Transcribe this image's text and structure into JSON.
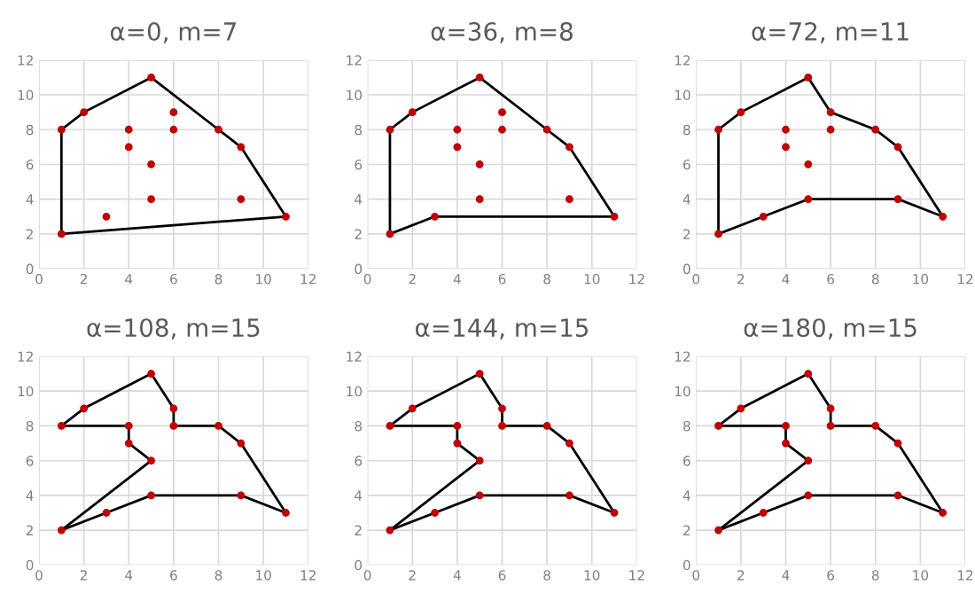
{
  "chart_data": [
    {
      "type": "scatter",
      "title": "α=0, m=7",
      "xlim": [
        0,
        12
      ],
      "xticks": [
        0,
        2,
        4,
        6,
        8,
        10,
        12
      ],
      "ylim": [
        0,
        12
      ],
      "yticks": [
        0,
        2,
        4,
        6,
        8,
        10,
        12
      ],
      "grid": true,
      "series": [
        {
          "type": "line",
          "color": "#000000",
          "marker": "none",
          "x": [
            1,
            1,
            2,
            5,
            8,
            9,
            11
          ],
          "values": [
            2,
            8,
            9,
            11,
            8,
            7,
            3
          ]
        },
        {
          "type": "line",
          "color": "#000000",
          "marker": "none",
          "x": [
            11,
            1
          ],
          "values": [
            3,
            2
          ]
        },
        {
          "color": "#c00000",
          "marker": "circle",
          "x": [
            1,
            2,
            5,
            6,
            6,
            8,
            9,
            11,
            9,
            5,
            3,
            1,
            4,
            4,
            5
          ],
          "values": [
            8,
            9,
            11,
            9,
            8,
            8,
            7,
            3,
            4,
            4,
            3,
            2,
            8,
            7,
            6
          ]
        }
      ]
    },
    {
      "type": "scatter",
      "title": "α=36, m=8",
      "xlim": [
        0,
        12
      ],
      "xticks": [
        0,
        2,
        4,
        6,
        8,
        10,
        12
      ],
      "ylim": [
        0,
        12
      ],
      "yticks": [
        0,
        2,
        4,
        6,
        8,
        10,
        12
      ],
      "grid": true,
      "series": [
        {
          "type": "line",
          "color": "#000000",
          "marker": "none",
          "x": [
            1,
            1,
            2,
            5,
            8,
            9,
            11
          ],
          "values": [
            2,
            8,
            9,
            11,
            8,
            7,
            3
          ]
        },
        {
          "type": "line",
          "color": "#000000",
          "marker": "none",
          "x": [
            11,
            3,
            1
          ],
          "values": [
            3,
            3,
            2
          ]
        },
        {
          "color": "#c00000",
          "marker": "circle",
          "x": [
            1,
            2,
            5,
            6,
            6,
            8,
            9,
            11,
            9,
            5,
            3,
            1,
            4,
            4,
            5
          ],
          "values": [
            8,
            9,
            11,
            9,
            8,
            8,
            7,
            3,
            4,
            4,
            3,
            2,
            8,
            7,
            6
          ]
        }
      ]
    },
    {
      "type": "scatter",
      "title": "α=72, m=11",
      "xlim": [
        0,
        12
      ],
      "xticks": [
        0,
        2,
        4,
        6,
        8,
        10,
        12
      ],
      "ylim": [
        0,
        12
      ],
      "yticks": [
        0,
        2,
        4,
        6,
        8,
        10,
        12
      ],
      "grid": true,
      "series": [
        {
          "type": "line",
          "color": "#000000",
          "marker": "none",
          "x": [
            1,
            1,
            2,
            5,
            6,
            8,
            9,
            11
          ],
          "values": [
            2,
            8,
            9,
            11,
            9,
            8,
            7,
            3
          ]
        },
        {
          "type": "line",
          "color": "#000000",
          "marker": "none",
          "x": [
            11,
            9,
            5,
            3,
            1
          ],
          "values": [
            3,
            4,
            4,
            3,
            2
          ]
        },
        {
          "color": "#c00000",
          "marker": "circle",
          "x": [
            1,
            2,
            5,
            6,
            6,
            8,
            9,
            11,
            9,
            5,
            3,
            1,
            4,
            4,
            5
          ],
          "values": [
            8,
            9,
            11,
            9,
            8,
            8,
            7,
            3,
            4,
            4,
            3,
            2,
            8,
            7,
            6
          ]
        }
      ]
    },
    {
      "type": "scatter",
      "title": "α=108, m=15",
      "xlim": [
        0,
        12
      ],
      "xticks": [
        0,
        2,
        4,
        6,
        8,
        10,
        12
      ],
      "ylim": [
        0,
        12
      ],
      "yticks": [
        0,
        2,
        4,
        6,
        8,
        10,
        12
      ],
      "grid": true,
      "series": [
        {
          "type": "line",
          "color": "#000000",
          "marker": "none",
          "x": [
            1,
            5,
            4,
            4,
            1,
            2,
            5,
            6,
            6,
            8,
            9,
            11
          ],
          "values": [
            2,
            6,
            7,
            8,
            8,
            9,
            11,
            9,
            8,
            8,
            7,
            3
          ]
        },
        {
          "type": "line",
          "color": "#000000",
          "marker": "none",
          "x": [
            11,
            9,
            5,
            3,
            1
          ],
          "values": [
            3,
            4,
            4,
            3,
            2
          ]
        },
        {
          "color": "#c00000",
          "marker": "circle",
          "x": [
            1,
            2,
            5,
            6,
            6,
            8,
            9,
            11,
            9,
            5,
            3,
            1,
            4,
            4,
            5
          ],
          "values": [
            8,
            9,
            11,
            9,
            8,
            8,
            7,
            3,
            4,
            4,
            3,
            2,
            8,
            7,
            6
          ]
        }
      ]
    },
    {
      "type": "scatter",
      "title": "α=144, m=15",
      "xlim": [
        0,
        12
      ],
      "xticks": [
        0,
        2,
        4,
        6,
        8,
        10,
        12
      ],
      "ylim": [
        0,
        12
      ],
      "yticks": [
        0,
        2,
        4,
        6,
        8,
        10,
        12
      ],
      "grid": true,
      "series": [
        {
          "type": "line",
          "color": "#000000",
          "marker": "none",
          "x": [
            1,
            5,
            4,
            4,
            1,
            2,
            5,
            6,
            6,
            8,
            9,
            11
          ],
          "values": [
            2,
            6,
            7,
            8,
            8,
            9,
            11,
            9,
            8,
            8,
            7,
            3
          ]
        },
        {
          "type": "line",
          "color": "#000000",
          "marker": "none",
          "x": [
            11,
            9,
            5,
            3,
            1
          ],
          "values": [
            3,
            4,
            4,
            3,
            2
          ]
        },
        {
          "color": "#c00000",
          "marker": "circle",
          "x": [
            1,
            2,
            5,
            6,
            6,
            8,
            9,
            11,
            9,
            5,
            3,
            1,
            4,
            4,
            5
          ],
          "values": [
            8,
            9,
            11,
            9,
            8,
            8,
            7,
            3,
            4,
            4,
            3,
            2,
            8,
            7,
            6
          ]
        }
      ]
    },
    {
      "type": "scatter",
      "title": "α=180, m=15",
      "xlim": [
        0,
        12
      ],
      "xticks": [
        0,
        2,
        4,
        6,
        8,
        10,
        12
      ],
      "ylim": [
        0,
        12
      ],
      "yticks": [
        0,
        2,
        4,
        6,
        8,
        10,
        12
      ],
      "grid": true,
      "series": [
        {
          "type": "line",
          "color": "#000000",
          "marker": "none",
          "x": [
            1,
            5,
            4,
            4,
            1,
            2,
            5,
            6,
            6,
            8,
            9,
            11
          ],
          "values": [
            2,
            6,
            7,
            8,
            8,
            9,
            11,
            9,
            8,
            8,
            7,
            3
          ]
        },
        {
          "type": "line",
          "color": "#000000",
          "marker": "none",
          "x": [
            11,
            9,
            5,
            3,
            1
          ],
          "values": [
            3,
            4,
            4,
            3,
            2
          ]
        },
        {
          "color": "#c00000",
          "marker": "circle",
          "x": [
            1,
            2,
            5,
            6,
            6,
            8,
            9,
            11,
            9,
            5,
            3,
            1,
            4,
            4,
            5
          ],
          "values": [
            8,
            9,
            11,
            9,
            8,
            8,
            7,
            3,
            4,
            4,
            3,
            2,
            8,
            7,
            6
          ]
        }
      ]
    }
  ]
}
